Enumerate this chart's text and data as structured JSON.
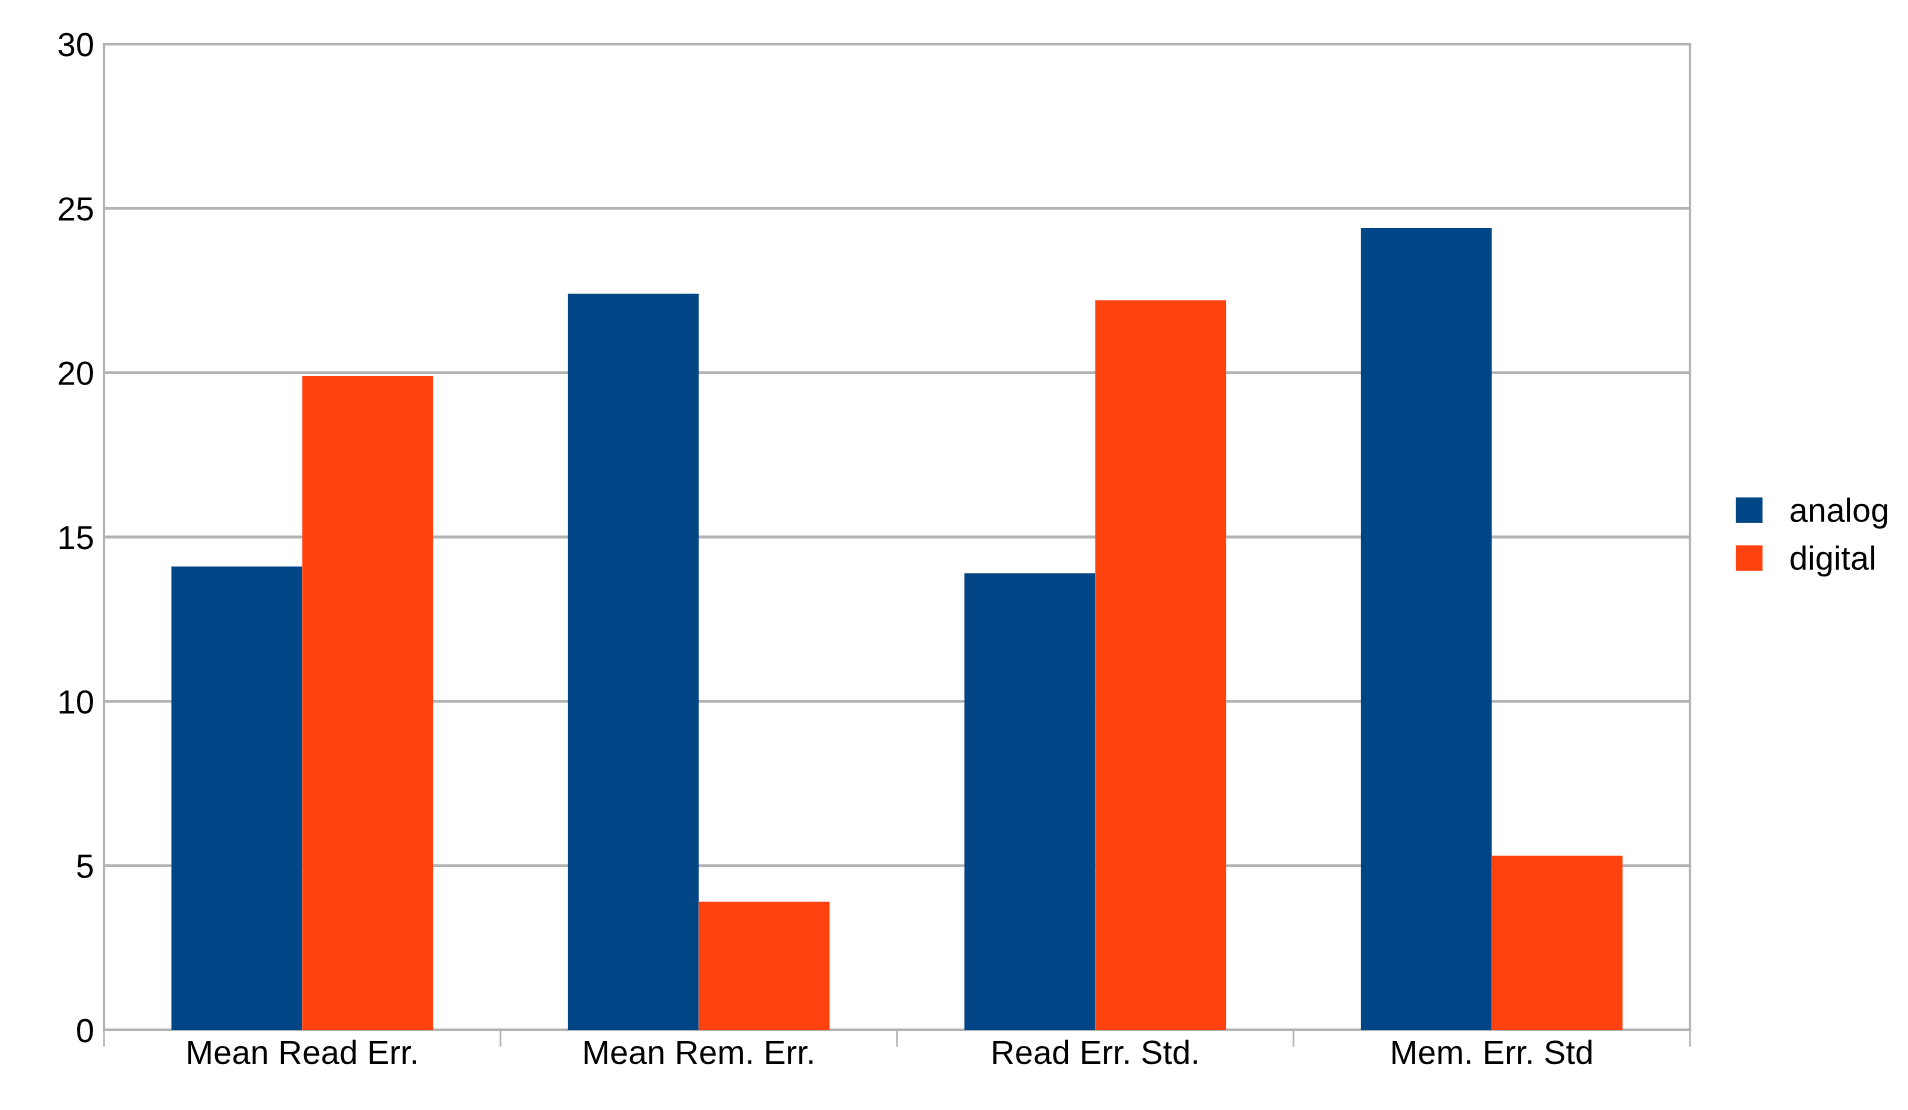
{
  "chart_data": {
    "type": "bar",
    "categories": [
      "Mean Read Err.",
      "Mean Rem. Err.",
      "Read Err. Std.",
      "Mem. Err. Std"
    ],
    "series": [
      {
        "name": "analog",
        "color": "#004586",
        "values": [
          14.1,
          22.4,
          13.9,
          24.4
        ]
      },
      {
        "name": "digital",
        "color": "#ff420e",
        "values": [
          19.9,
          3.9,
          22.2,
          5.3
        ]
      }
    ],
    "ylim": [
      0,
      30
    ],
    "yticks": [
      0,
      5,
      10,
      15,
      20,
      25,
      30
    ],
    "grid": "y",
    "legend": "right"
  }
}
